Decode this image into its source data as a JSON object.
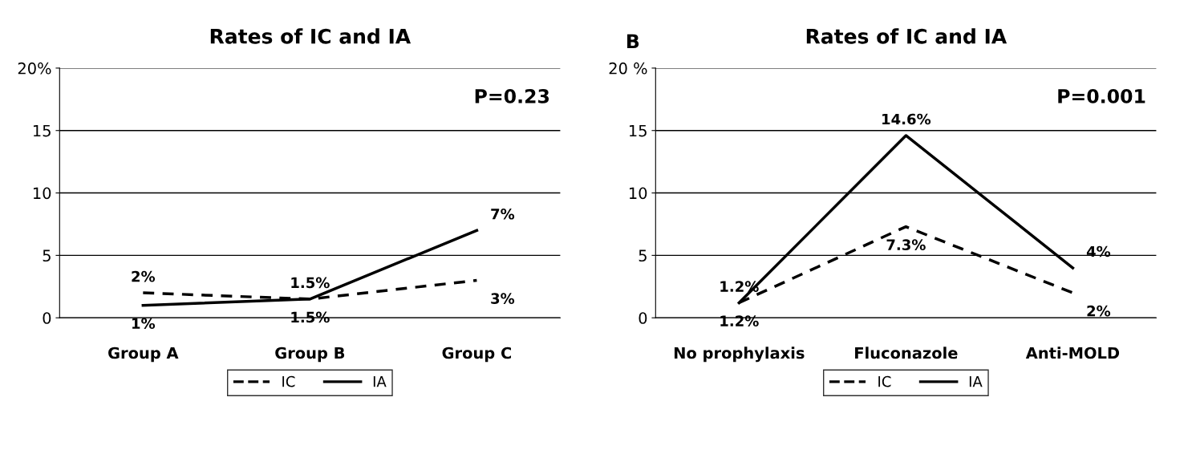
{
  "chart_data": [
    {
      "type": "line",
      "title": "Rates of IC and IA",
      "categories": [
        "Group A",
        "Group B",
        "Group C"
      ],
      "series": [
        {
          "name": "IC",
          "color": "#000000",
          "line_style": "dashed",
          "values": [
            2,
            1.5,
            3
          ],
          "value_labels": [
            "2%",
            "1.5%",
            "3%"
          ]
        },
        {
          "name": "IA",
          "color": "#000000",
          "line_style": "solid",
          "values": [
            1,
            1.5,
            7
          ],
          "value_labels": [
            "1%",
            "1.5%",
            "7%"
          ]
        }
      ],
      "ylim": [
        0,
        20
      ],
      "yticks": [
        0,
        5,
        10,
        15,
        {
          "value": 20,
          "label": "20%"
        }
      ],
      "grid": "y",
      "legend": "bottom",
      "marker": "none",
      "annotations": [
        "P=0.23"
      ]
    },
    {
      "type": "line",
      "title": "Rates of IC and IA",
      "categories": [
        "No prophylaxis",
        "Fluconazole",
        "Anti-MOLD"
      ],
      "series": [
        {
          "name": "IC",
          "color": "#000000",
          "line_style": "dashed",
          "values": [
            1.2,
            7.3,
            2
          ],
          "value_labels": [
            "1.2%",
            "7.3%",
            "2%"
          ]
        },
        {
          "name": "IA",
          "color": "#000000",
          "line_style": "solid",
          "values": [
            1.2,
            14.6,
            4
          ],
          "value_labels": [
            "1.2%",
            "14.6%",
            "4%"
          ]
        }
      ],
      "ylim": [
        0,
        20
      ],
      "yticks": [
        0,
        5,
        10,
        15,
        {
          "value": 20,
          "label": "20 %"
        }
      ],
      "grid": "y",
      "legend": "bottom",
      "marker": "none",
      "annotations": [
        "P=0.001",
        "B"
      ]
    }
  ]
}
